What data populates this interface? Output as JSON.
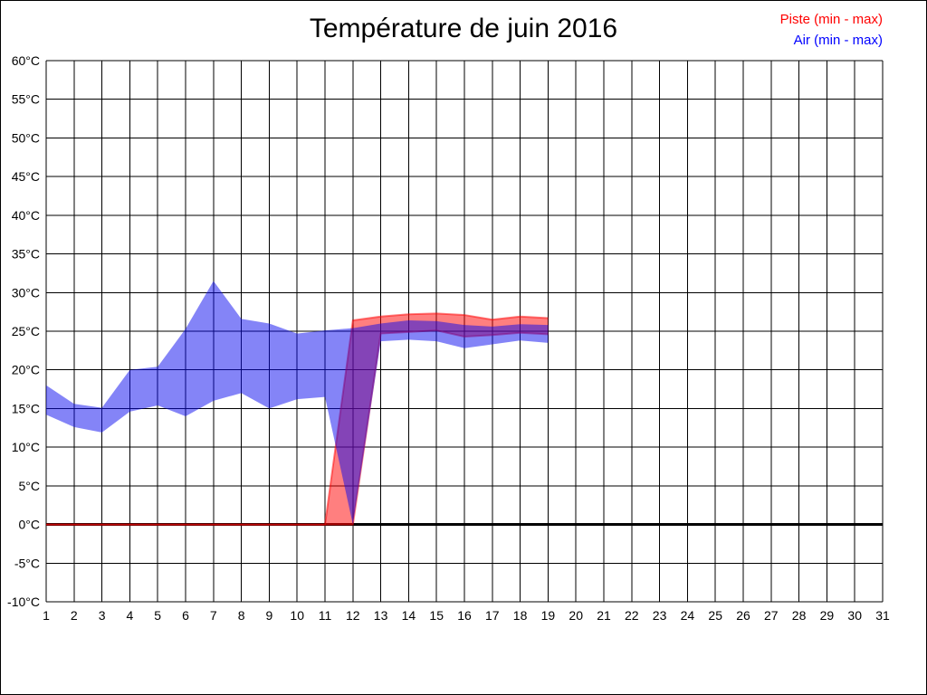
{
  "chart_data": {
    "type": "area",
    "subtype": "min-max-range-bands",
    "title": "Température de juin 2016",
    "xlabel": "",
    "ylabel": "",
    "xlim": [
      1,
      31
    ],
    "ylim": [
      -10,
      60
    ],
    "grid": true,
    "background": "#FFFFFF",
    "grid_color": "#000000",
    "legend_position": "top-right",
    "legend": [
      {
        "label": "Piste (min - max)",
        "color": "#FF0000"
      },
      {
        "label": "Air (min - max)",
        "color": "#0000FF"
      }
    ],
    "xtick_labels": [
      "1",
      "2",
      "3",
      "4",
      "5",
      "6",
      "7",
      "8",
      "9",
      "10",
      "11",
      "12",
      "13",
      "14",
      "15",
      "16",
      "17",
      "18",
      "19",
      "20",
      "21",
      "22",
      "23",
      "24",
      "25",
      "26",
      "27",
      "28",
      "29",
      "30",
      "31"
    ],
    "ytick_values": [
      60,
      55,
      50,
      45,
      40,
      35,
      30,
      25,
      20,
      15,
      10,
      5,
      0,
      -5,
      -10
    ],
    "ytick_labels": [
      "60°C",
      "55°C",
      "50°C",
      "45°C",
      "40°C",
      "35°C",
      "30°C",
      "25°C",
      "20°C",
      "15°C",
      "10°C",
      "5°C",
      "0°C",
      "-5°C",
      "-10°C"
    ],
    "zero_line": {
      "value": 0,
      "color": "#000000",
      "width": 3
    },
    "series": [
      {
        "name": "Piste",
        "legend_label": "Piste (min - max)",
        "fill": "rgba(255,0,0,0.5)",
        "edge_stroke": "rgba(255,0,0,0.5)",
        "edge_width": 2,
        "days": [
          1,
          2,
          3,
          4,
          5,
          6,
          7,
          8,
          9,
          10,
          11,
          12,
          13,
          14,
          15,
          16,
          17,
          18,
          19
        ],
        "min": [
          0,
          0,
          0,
          0,
          0,
          0,
          0,
          0,
          0,
          0,
          0,
          0,
          24.7,
          24.9,
          25.1,
          24.3,
          24.5,
          24.8,
          24.6
        ],
        "max": [
          0,
          0,
          0,
          0,
          0,
          0,
          0,
          0,
          0,
          0,
          0,
          26.4,
          26.9,
          27.2,
          27.3,
          27.1,
          26.5,
          26.9,
          26.7
        ]
      },
      {
        "name": "Air",
        "legend_label": "Air (min - max)",
        "fill": "rgba(10,10,240,0.5)",
        "edge_stroke": "",
        "edge_width": 0,
        "days": [
          1,
          2,
          3,
          4,
          5,
          6,
          7,
          8,
          9,
          10,
          11,
          12,
          13,
          14,
          15,
          16,
          17,
          18,
          19
        ],
        "min": [
          14.2,
          12.6,
          11.9,
          14.6,
          15.4,
          14.0,
          16.0,
          17.0,
          15.0,
          16.2,
          16.5,
          0,
          23.7,
          23.9,
          23.7,
          22.8,
          23.3,
          23.8,
          23.5
        ],
        "max": [
          18.0,
          15.6,
          15.1,
          20.0,
          20.4,
          25.3,
          31.5,
          26.6,
          26.0,
          24.7,
          25.1,
          25.4,
          26.0,
          26.4,
          26.3,
          25.8,
          25.6,
          25.9,
          25.8
        ]
      }
    ]
  }
}
